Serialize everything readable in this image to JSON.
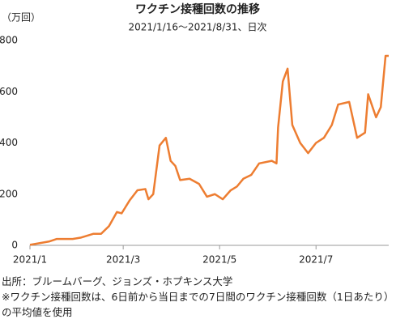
{
  "chart_data": {
    "type": "line",
    "title": "ワクチン接種回数の推移",
    "subtitle": "2021/1/16〜2021/8/31、日次",
    "y_label": "（万回）",
    "source": "出所：ブルームバーグ、ジョンズ・ホプキンス大学",
    "note": "※ワクチン接種回数は、6日前から当日までの7日間のワクチン接種回数（1日あたり）の平均値を使用",
    "x": [
      "2021-01-16",
      "2021-01-28",
      "2021-02-02",
      "2021-02-12",
      "2021-02-17",
      "2021-02-25",
      "2021-03-02",
      "2021-03-07",
      "2021-03-12",
      "2021-03-15",
      "2021-03-20",
      "2021-03-25",
      "2021-03-30",
      "2021-04-01",
      "2021-04-04",
      "2021-04-08",
      "2021-04-12",
      "2021-04-15",
      "2021-04-18",
      "2021-04-21",
      "2021-04-27",
      "2021-05-03",
      "2021-05-08",
      "2021-05-13",
      "2021-05-18",
      "2021-05-23",
      "2021-05-27",
      "2021-05-31",
      "2021-06-05",
      "2021-06-10",
      "2021-06-18",
      "2021-06-21",
      "2021-06-22",
      "2021-06-25",
      "2021-06-28",
      "2021-07-01",
      "2021-07-06",
      "2021-07-11",
      "2021-07-16",
      "2021-07-21",
      "2021-07-26",
      "2021-07-30",
      "2021-08-06",
      "2021-08-11",
      "2021-08-16",
      "2021-08-18",
      "2021-08-23",
      "2021-08-26",
      "2021-08-29",
      "2021-08-31"
    ],
    "series": [
      {
        "name": "ワクチン接種回数",
        "color": "#ed7d31",
        "values": [
          2,
          15,
          25,
          25,
          30,
          45,
          45,
          75,
          130,
          125,
          175,
          215,
          220,
          180,
          200,
          390,
          420,
          330,
          310,
          255,
          260,
          240,
          190,
          200,
          180,
          215,
          230,
          260,
          275,
          320,
          330,
          320,
          460,
          640,
          690,
          470,
          400,
          360,
          400,
          420,
          470,
          550,
          560,
          420,
          440,
          590,
          500,
          540,
          740,
          740
        ]
      }
    ],
    "xlim": [
      "2021-01-16",
      "2021-08-31"
    ],
    "xticks": [
      {
        "value": "2021-01-16",
        "label": "2021/1"
      },
      {
        "value": "2021-03-16",
        "label": "2021/3"
      },
      {
        "value": "2021-05-16",
        "label": "2021/5"
      },
      {
        "value": "2021-07-16",
        "label": "2021/7"
      }
    ],
    "ylim": [
      0,
      800
    ],
    "yticks": [
      0,
      200,
      400,
      600,
      800
    ]
  }
}
